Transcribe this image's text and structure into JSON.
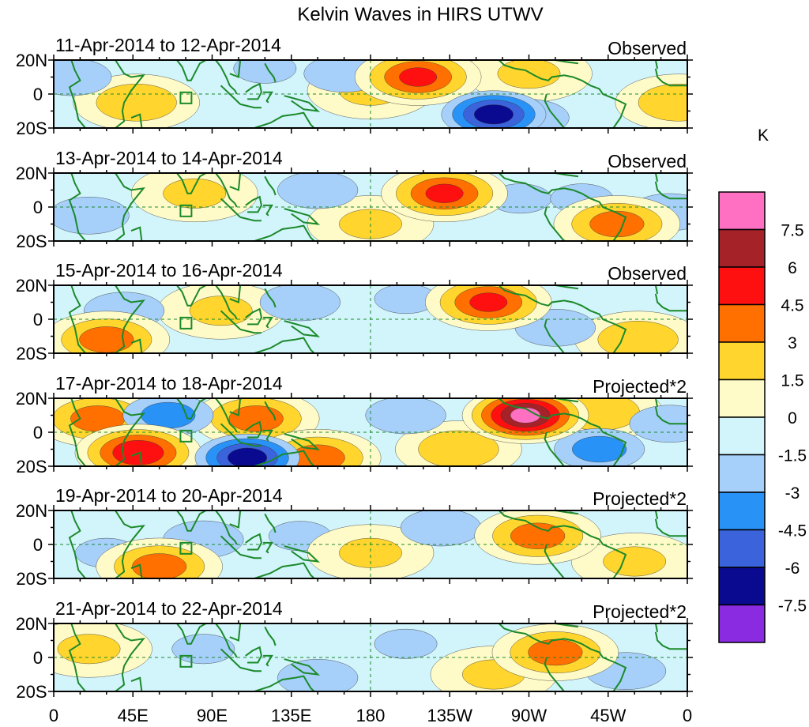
{
  "chart_data": {
    "type": "heatmap",
    "title": "Kelvin Waves in HIRS UTWV",
    "colorbar": {
      "unit": "K",
      "levels": [
        "7.5",
        "6",
        "4.5",
        "3",
        "1.5",
        "0",
        "-1.5",
        "-3",
        "-4.5",
        "-6",
        "-7.5"
      ],
      "colors": [
        "#ff6fc2",
        "#a42228",
        "#ff1010",
        "#ff7000",
        "#ffd52e",
        "#fffbc8",
        "#d2f4fb",
        "#a6d0fa",
        "#2992f6",
        "#3b64dc",
        "#0a0a90",
        "#8a2be2"
      ]
    },
    "x_ticks": [
      "0",
      "45E",
      "90E",
      "135E",
      "180",
      "135W",
      "90W",
      "45W",
      "0"
    ],
    "y_ticks": [
      "20N",
      "0",
      "20S"
    ],
    "panels": [
      {
        "date": "11-Apr-2014 to 12-Apr-2014",
        "label": "Observed",
        "blobs": [
          {
            "lon": 207,
            "lat": 10,
            "val": 5
          },
          {
            "lon": 250,
            "lat": -12,
            "val": -7
          },
          {
            "lon": 47,
            "lat": -5,
            "val": 3
          },
          {
            "lon": 180,
            "lat": 2,
            "val": 2
          },
          {
            "lon": 270,
            "lat": 12,
            "val": 2
          },
          {
            "lon": 10,
            "lat": 10,
            "val": -3
          },
          {
            "lon": 120,
            "lat": 15,
            "val": -2
          },
          {
            "lon": 165,
            "lat": 12,
            "val": -3
          },
          {
            "lon": 270,
            "lat": -14,
            "val": -3
          },
          {
            "lon": 355,
            "lat": -5,
            "val": 3
          }
        ]
      },
      {
        "date": "13-Apr-2014 to 14-Apr-2014",
        "label": "Observed",
        "blobs": [
          {
            "lon": 222,
            "lat": 8,
            "val": 5
          },
          {
            "lon": 80,
            "lat": 8,
            "val": 2
          },
          {
            "lon": 320,
            "lat": -10,
            "val": 4
          },
          {
            "lon": 150,
            "lat": 10,
            "val": -3
          },
          {
            "lon": 265,
            "lat": 5,
            "val": -2
          },
          {
            "lon": 20,
            "lat": -5,
            "val": -3
          },
          {
            "lon": 300,
            "lat": 5,
            "val": -2
          },
          {
            "lon": 350,
            "lat": -3,
            "val": -3
          },
          {
            "lon": 180,
            "lat": -10,
            "val": 2
          }
        ]
      },
      {
        "date": "15-Apr-2014 to 16-Apr-2014",
        "label": "Observed",
        "blobs": [
          {
            "lon": 247,
            "lat": 10,
            "val": 5
          },
          {
            "lon": 30,
            "lat": -12,
            "val": 4
          },
          {
            "lon": 332,
            "lat": -12,
            "val": 3
          },
          {
            "lon": 40,
            "lat": 5,
            "val": -3
          },
          {
            "lon": 140,
            "lat": 10,
            "val": -3
          },
          {
            "lon": 200,
            "lat": 12,
            "val": -2
          },
          {
            "lon": 285,
            "lat": -5,
            "val": -3
          },
          {
            "lon": 95,
            "lat": 5,
            "val": 2
          }
        ]
      },
      {
        "date": "17-Apr-2014 to 18-Apr-2014",
        "label": "Projected*2",
        "blobs": [
          {
            "lon": 268,
            "lat": 10,
            "val": 8
          },
          {
            "lon": 48,
            "lat": -12,
            "val": 6
          },
          {
            "lon": 25,
            "lat": 8,
            "val": 4
          },
          {
            "lon": 115,
            "lat": 8,
            "val": 4
          },
          {
            "lon": 150,
            "lat": -15,
            "val": 4
          },
          {
            "lon": 230,
            "lat": -10,
            "val": 3
          },
          {
            "lon": 310,
            "lat": 12,
            "val": 3
          },
          {
            "lon": 65,
            "lat": 10,
            "val": -4
          },
          {
            "lon": 110,
            "lat": -15,
            "val": -7
          },
          {
            "lon": 200,
            "lat": 10,
            "val": -3
          },
          {
            "lon": 310,
            "lat": -10,
            "val": -4
          },
          {
            "lon": 350,
            "lat": 5,
            "val": -3
          }
        ]
      },
      {
        "date": "19-Apr-2014 to 20-Apr-2014",
        "label": "Projected*2",
        "blobs": [
          {
            "lon": 275,
            "lat": 5,
            "val": 4
          },
          {
            "lon": 60,
            "lat": -13,
            "val": 4
          },
          {
            "lon": 330,
            "lat": -10,
            "val": 2
          },
          {
            "lon": 85,
            "lat": 3,
            "val": -3
          },
          {
            "lon": 220,
            "lat": 10,
            "val": -3
          },
          {
            "lon": 30,
            "lat": -5,
            "val": -2
          },
          {
            "lon": 140,
            "lat": 5,
            "val": -2
          },
          {
            "lon": 180,
            "lat": -5,
            "val": 2
          }
        ]
      },
      {
        "date": "21-Apr-2014 to 22-Apr-2014",
        "label": "Projected*2",
        "blobs": [
          {
            "lon": 285,
            "lat": 3,
            "val": 4
          },
          {
            "lon": 20,
            "lat": 5,
            "val": 2
          },
          {
            "lon": 250,
            "lat": -10,
            "val": 2
          },
          {
            "lon": 85,
            "lat": 5,
            "val": -2
          },
          {
            "lon": 150,
            "lat": -12,
            "val": -3
          },
          {
            "lon": 325,
            "lat": -8,
            "val": -3
          },
          {
            "lon": 200,
            "lat": 8,
            "val": -2
          }
        ]
      }
    ]
  }
}
